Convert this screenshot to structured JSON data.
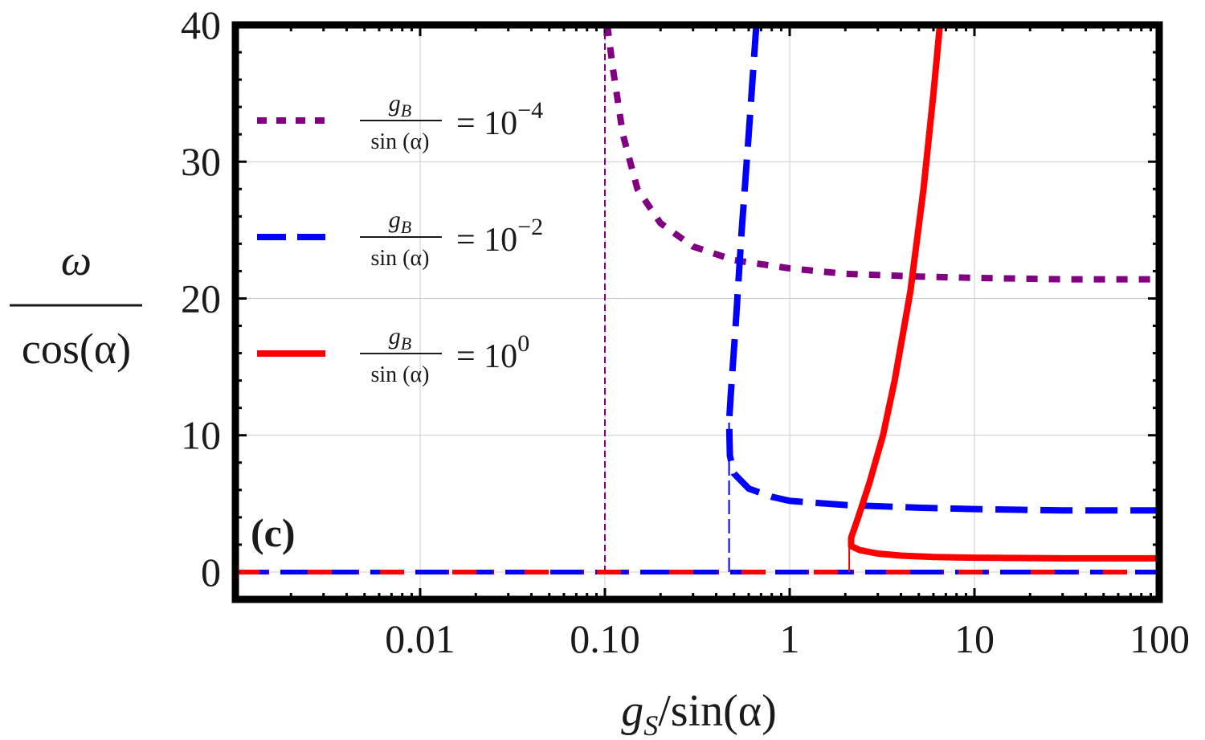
{
  "chart_data": {
    "type": "line",
    "panel_label": "(c)",
    "xlabel": {
      "var": "g",
      "sub": "S",
      "rest": "/sin(α)"
    },
    "ylabel": {
      "num": "ω",
      "den": "cos(α)"
    },
    "xscale": "log",
    "xlim": [
      0.001,
      100
    ],
    "ylim": [
      -2,
      40
    ],
    "x_ticks": [
      0.01,
      0.1,
      1,
      10,
      100
    ],
    "x_tick_labels": [
      "0.01",
      "0.10",
      "1",
      "10",
      "100"
    ],
    "y_ticks": [
      0,
      10,
      20,
      30,
      40
    ],
    "y_tick_labels": [
      "0",
      "10",
      "20",
      "30",
      "40"
    ],
    "grid": true,
    "legend_position": "top-left",
    "legend_frac": {
      "num": "g",
      "num_sub": "B",
      "den": "sin (α)"
    },
    "series": [
      {
        "name": "gB/sin(α) = 10^-4",
        "legend_value": "= 10",
        "legend_exp": "−4",
        "color": "#800080",
        "style": "dotted",
        "threshold_x": 0.1,
        "upper_branch": [
          [
            0.103,
            40
          ],
          [
            0.11,
            37
          ],
          [
            0.125,
            32
          ],
          [
            0.15,
            28
          ],
          [
            0.2,
            25.5
          ],
          [
            0.3,
            23.8
          ],
          [
            0.5,
            22.8
          ],
          [
            1,
            22.2
          ],
          [
            2,
            21.8
          ],
          [
            5,
            21.6
          ],
          [
            10,
            21.5
          ],
          [
            30,
            21.4
          ],
          [
            100,
            21.4
          ]
        ],
        "zero_branch": [
          [
            0.001,
            0
          ],
          [
            100,
            0
          ]
        ]
      },
      {
        "name": "gB/sin(α) = 10^-2",
        "legend_value": "= 10",
        "legend_exp": "−2",
        "color": "#0000ff",
        "style": "dashed",
        "threshold_x": 0.47,
        "upper_branch": [
          [
            0.66,
            40
          ],
          [
            0.6,
            32
          ],
          [
            0.55,
            25
          ],
          [
            0.51,
            18
          ],
          [
            0.48,
            13
          ],
          [
            0.47,
            11
          ],
          [
            0.475,
            8.5
          ],
          [
            0.5,
            7.2
          ],
          [
            0.6,
            6.1
          ],
          [
            0.8,
            5.5
          ],
          [
            1,
            5.2
          ],
          [
            2,
            4.9
          ],
          [
            5,
            4.7
          ],
          [
            10,
            4.6
          ],
          [
            30,
            4.5
          ],
          [
            100,
            4.5
          ]
        ],
        "zero_branch": [
          [
            0.001,
            0
          ],
          [
            100,
            0
          ]
        ]
      },
      {
        "name": "gB/sin(α) = 10^0",
        "legend_value": "= 10",
        "legend_exp": "0",
        "color": "#ff0000",
        "style": "solid",
        "threshold_x": 2.1,
        "upper_branch": [
          [
            6.5,
            40
          ],
          [
            6,
            35
          ],
          [
            5.3,
            28
          ],
          [
            4.5,
            20.5
          ],
          [
            3.7,
            14
          ],
          [
            3.2,
            10
          ],
          [
            2.7,
            6.5
          ],
          [
            2.35,
            4
          ],
          [
            2.15,
            2.5
          ],
          [
            2.15,
            1.9
          ],
          [
            2.4,
            1.6
          ],
          [
            3,
            1.35
          ],
          [
            4,
            1.2
          ],
          [
            6,
            1.1
          ],
          [
            10,
            1.05
          ],
          [
            30,
            1.0
          ],
          [
            100,
            1.0
          ]
        ],
        "zero_branch": [
          [
            0.001,
            0
          ],
          [
            100,
            0
          ]
        ]
      }
    ]
  }
}
